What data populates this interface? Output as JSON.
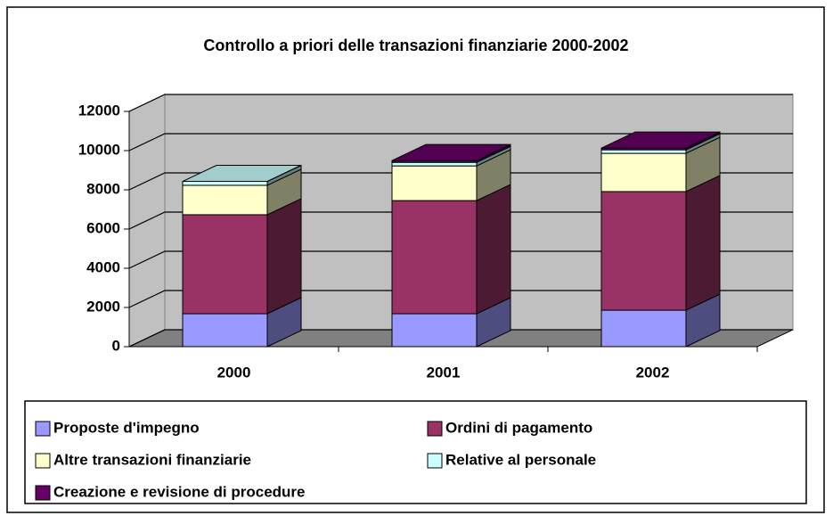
{
  "chart_data": {
    "type": "bar3d_stacked",
    "title": "Controllo a priori delle transazioni finanziarie 2000-2002",
    "categories": [
      "2000",
      "2001",
      "2002"
    ],
    "series": [
      {
        "name": "Proposte d'impegno",
        "color": "#9999ff",
        "values": [
          1680,
          1680,
          1860
        ]
      },
      {
        "name": "Ordini di pagamento",
        "color": "#993366",
        "values": [
          5050,
          5770,
          6050
        ]
      },
      {
        "name": "Altre transazioni finanziarie",
        "color": "#ffffcc",
        "values": [
          1500,
          1770,
          1950
        ]
      },
      {
        "name": "Relative al personale",
        "color": "#ccffff",
        "values": [
          200,
          180,
          180
        ]
      },
      {
        "name": "Creazione e revisione di procedure",
        "color": "#660066",
        "values": [
          0,
          90,
          90
        ]
      }
    ],
    "ylim": [
      0,
      12000
    ],
    "yticks": [
      0,
      2000,
      4000,
      6000,
      8000,
      10000,
      12000
    ],
    "grid": true
  }
}
